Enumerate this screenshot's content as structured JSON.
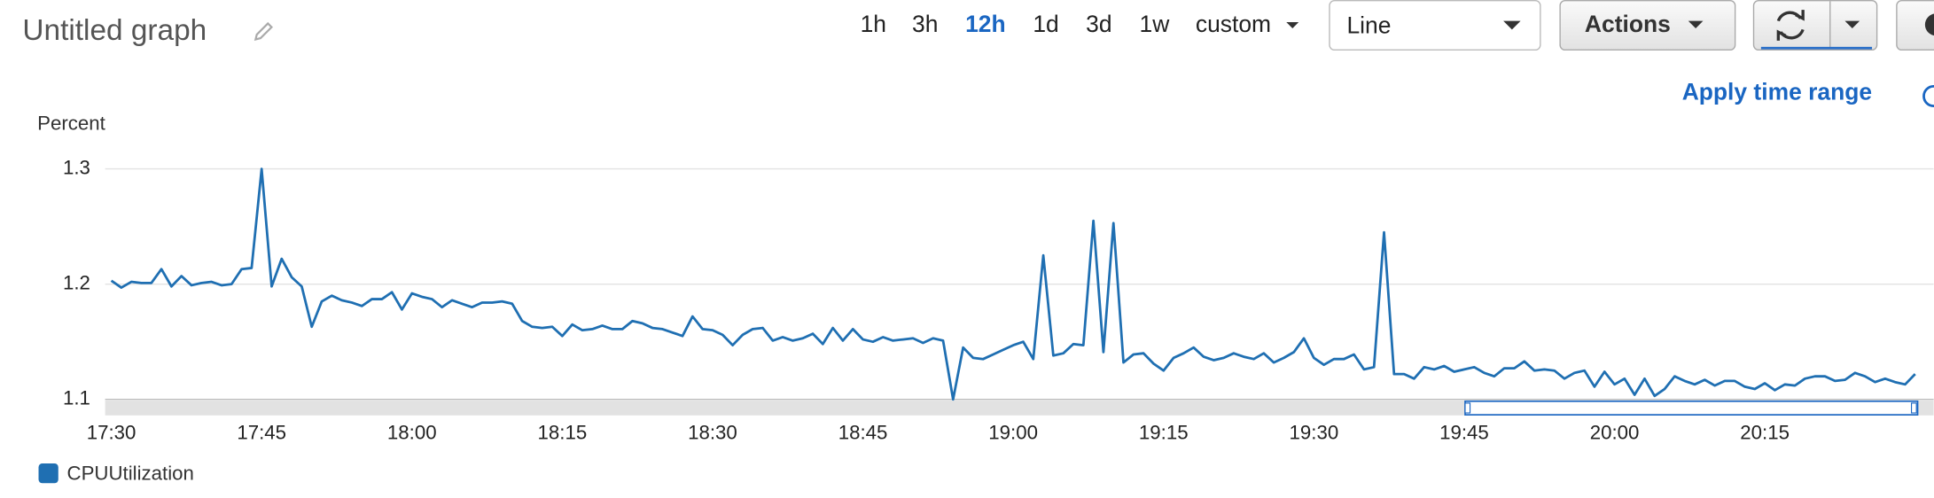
{
  "ui": {
    "title": "Untitled graph",
    "time_ranges": [
      "1h",
      "3h",
      "12h",
      "1d",
      "3d",
      "1w",
      "custom"
    ],
    "selected_range": 2,
    "view_select": "Line",
    "actions_button": "Actions",
    "apply_link": "Apply time range"
  },
  "chart_data": {
    "type": "line",
    "ylabel": "Percent",
    "x": [
      "17:30",
      "17:31",
      "17:32",
      "17:33",
      "17:34",
      "17:35",
      "17:36",
      "17:37",
      "17:38",
      "17:39",
      "17:40",
      "17:41",
      "17:42",
      "17:43",
      "17:44",
      "17:45",
      "17:46",
      "17:47",
      "17:48",
      "17:49",
      "17:50",
      "17:51",
      "17:52",
      "17:53",
      "17:54",
      "17:55",
      "17:56",
      "17:57",
      "17:58",
      "17:59",
      "18:00",
      "18:01",
      "18:02",
      "18:03",
      "18:04",
      "18:05",
      "18:06",
      "18:07",
      "18:08",
      "18:09",
      "18:10",
      "18:11",
      "18:12",
      "18:13",
      "18:14",
      "18:15",
      "18:16",
      "18:17",
      "18:18",
      "18:19",
      "18:20",
      "18:21",
      "18:22",
      "18:23",
      "18:24",
      "18:25",
      "18:26",
      "18:27",
      "18:28",
      "18:29",
      "18:30",
      "18:31",
      "18:32",
      "18:33",
      "18:34",
      "18:35",
      "18:36",
      "18:37",
      "18:38",
      "18:39",
      "18:40",
      "18:41",
      "18:42",
      "18:43",
      "18:44",
      "18:45",
      "18:46",
      "18:47",
      "18:48",
      "18:49",
      "18:50",
      "18:51",
      "18:52",
      "18:53",
      "18:54",
      "18:55",
      "18:56",
      "18:57",
      "18:58",
      "18:59",
      "19:00",
      "19:01",
      "19:02",
      "19:03",
      "19:04",
      "19:05",
      "19:06",
      "19:07",
      "19:08",
      "19:09",
      "19:10",
      "19:11",
      "19:12",
      "19:13",
      "19:14",
      "19:15",
      "19:16",
      "19:17",
      "19:18",
      "19:19",
      "19:20",
      "19:21",
      "19:22",
      "19:23",
      "19:24",
      "19:25",
      "19:26",
      "19:27",
      "19:28",
      "19:29",
      "19:30",
      "19:31",
      "19:32",
      "19:33",
      "19:34",
      "19:35",
      "19:36",
      "19:37",
      "19:38",
      "19:39",
      "19:40",
      "19:41",
      "19:42",
      "19:43",
      "19:44",
      "19:45",
      "19:46",
      "19:47",
      "19:48",
      "19:49",
      "19:50",
      "19:51",
      "19:52",
      "19:53",
      "19:54",
      "19:55",
      "19:56",
      "19:57",
      "19:58",
      "19:59",
      "20:00",
      "20:01",
      "20:02",
      "20:03",
      "20:04",
      "20:05",
      "20:06",
      "20:07",
      "20:08",
      "20:09",
      "20:10",
      "20:11",
      "20:12",
      "20:13",
      "20:14",
      "20:15",
      "20:16",
      "20:17",
      "20:18",
      "20:19",
      "20:20",
      "20:21",
      "20:22",
      "20:23",
      "20:24",
      "20:25",
      "20:26",
      "20:27",
      "20:28",
      "20:29",
      "20:30"
    ],
    "series": [
      {
        "name": "CPUUtilization",
        "color": "#1f6fb2",
        "values": [
          1.203,
          1.197,
          1.202,
          1.201,
          1.201,
          1.213,
          1.198,
          1.207,
          1.199,
          1.201,
          1.202,
          1.199,
          1.2,
          1.213,
          1.214,
          1.3,
          1.198,
          1.222,
          1.206,
          1.198,
          1.163,
          1.185,
          1.19,
          1.186,
          1.184,
          1.181,
          1.187,
          1.187,
          1.193,
          1.178,
          1.192,
          1.189,
          1.187,
          1.18,
          1.186,
          1.183,
          1.18,
          1.184,
          1.184,
          1.185,
          1.183,
          1.168,
          1.163,
          1.162,
          1.163,
          1.155,
          1.165,
          1.16,
          1.161,
          1.164,
          1.161,
          1.161,
          1.168,
          1.166,
          1.162,
          1.161,
          1.158,
          1.155,
          1.172,
          1.161,
          1.16,
          1.156,
          1.147,
          1.156,
          1.161,
          1.162,
          1.151,
          1.154,
          1.151,
          1.153,
          1.157,
          1.148,
          1.162,
          1.151,
          1.161,
          1.152,
          1.15,
          1.154,
          1.151,
          1.152,
          1.153,
          1.149,
          1.153,
          1.151,
          1.1,
          1.145,
          1.136,
          1.135,
          1.139,
          1.143,
          1.147,
          1.15,
          1.135,
          1.225,
          1.138,
          1.14,
          1.148,
          1.147,
          1.255,
          1.141,
          1.253,
          1.132,
          1.139,
          1.14,
          1.131,
          1.125,
          1.136,
          1.14,
          1.145,
          1.137,
          1.134,
          1.136,
          1.14,
          1.137,
          1.135,
          1.14,
          1.132,
          1.136,
          1.141,
          1.153,
          1.136,
          1.13,
          1.135,
          1.135,
          1.139,
          1.126,
          1.128,
          1.245,
          1.122,
          1.122,
          1.118,
          1.128,
          1.126,
          1.129,
          1.124,
          1.126,
          1.128,
          1.123,
          1.12,
          1.127,
          1.127,
          1.133,
          1.125,
          1.126,
          1.125,
          1.118,
          1.123,
          1.125,
          1.111,
          1.124,
          1.113,
          1.118,
          1.104,
          1.118,
          1.103,
          1.109,
          1.12,
          1.116,
          1.113,
          1.117,
          1.112,
          1.116,
          1.116,
          1.111,
          1.109,
          1.114,
          1.108,
          1.113,
          1.112,
          1.118,
          1.12,
          1.12,
          1.116,
          1.117,
          1.123,
          1.12,
          1.115,
          1.118,
          1.115,
          1.113,
          1.122
        ]
      }
    ],
    "ylim": [
      1.1,
      1.3
    ],
    "yticks": [
      1.1,
      1.2,
      1.3
    ],
    "xticks": [
      "17:30",
      "17:45",
      "18:00",
      "18:15",
      "18:30",
      "18:45",
      "19:00",
      "19:15",
      "19:30",
      "19:45",
      "20:00",
      "20:15"
    ],
    "grid": true
  }
}
